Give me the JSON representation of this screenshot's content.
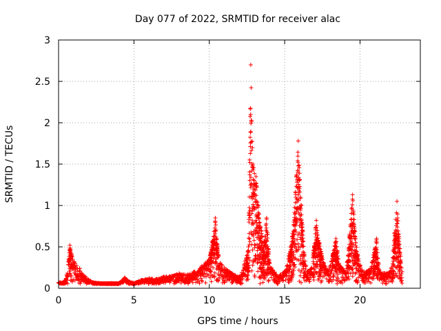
{
  "chart_data": {
    "type": "scatter",
    "title": "Day 077 of 2022, SRMTID for receiver alac",
    "xlabel": "GPS time / hours",
    "ylabel": "SRMTID / TECUs",
    "xlim": [
      0,
      24
    ],
    "ylim": [
      0,
      3
    ],
    "grid": true,
    "x_ticks": [
      0,
      5,
      10,
      15,
      20
    ],
    "y_ticks": [
      0,
      0.5,
      1,
      1.5,
      2,
      2.5,
      3
    ],
    "x_tick_labels": [
      "0",
      "5",
      "10",
      "15",
      "20"
    ],
    "y_tick_labels": [
      "0",
      "0.5",
      "1",
      "1.5",
      "2",
      "2.5",
      "3"
    ],
    "marker": "+",
    "series": [
      {
        "name": "SRMTID",
        "color": "#ff0000",
        "envelope": [
          [
            0.0,
            0.07
          ],
          [
            0.3,
            0.07
          ],
          [
            0.5,
            0.12
          ],
          [
            0.65,
            0.32
          ],
          [
            0.75,
            0.52
          ],
          [
            0.9,
            0.38
          ],
          [
            1.1,
            0.3
          ],
          [
            1.4,
            0.24
          ],
          [
            1.6,
            0.16
          ],
          [
            1.8,
            0.14
          ],
          [
            2.0,
            0.1
          ],
          [
            2.3,
            0.07
          ],
          [
            2.8,
            0.06
          ],
          [
            3.5,
            0.06
          ],
          [
            4.0,
            0.06
          ],
          [
            4.4,
            0.13
          ],
          [
            4.7,
            0.08
          ],
          [
            5.0,
            0.06
          ],
          [
            5.5,
            0.1
          ],
          [
            6.0,
            0.12
          ],
          [
            6.5,
            0.11
          ],
          [
            7.0,
            0.14
          ],
          [
            7.5,
            0.15
          ],
          [
            8.0,
            0.18
          ],
          [
            8.5,
            0.16
          ],
          [
            9.0,
            0.2
          ],
          [
            9.5,
            0.27
          ],
          [
            10.0,
            0.35
          ],
          [
            10.2,
            0.55
          ],
          [
            10.4,
            0.85
          ],
          [
            10.6,
            0.4
          ],
          [
            11.0,
            0.25
          ],
          [
            11.5,
            0.18
          ],
          [
            12.0,
            0.14
          ],
          [
            12.3,
            0.28
          ],
          [
            12.6,
            0.5
          ],
          [
            12.75,
            2.7
          ],
          [
            12.9,
            1.5
          ],
          [
            13.1,
            1.35
          ],
          [
            13.3,
            0.9
          ],
          [
            13.6,
            0.5
          ],
          [
            13.8,
            0.85
          ],
          [
            14.0,
            0.3
          ],
          [
            14.5,
            0.15
          ],
          [
            15.0,
            0.2
          ],
          [
            15.4,
            0.5
          ],
          [
            15.6,
            0.8
          ],
          [
            15.9,
            1.78
          ],
          [
            16.1,
            1.0
          ],
          [
            16.3,
            0.4
          ],
          [
            16.5,
            0.2
          ],
          [
            16.8,
            0.25
          ],
          [
            17.1,
            0.82
          ],
          [
            17.3,
            0.55
          ],
          [
            17.6,
            0.3
          ],
          [
            17.9,
            0.2
          ],
          [
            18.2,
            0.42
          ],
          [
            18.4,
            0.6
          ],
          [
            18.6,
            0.3
          ],
          [
            19.0,
            0.2
          ],
          [
            19.2,
            0.4
          ],
          [
            19.5,
            1.13
          ],
          [
            19.7,
            0.6
          ],
          [
            19.9,
            0.35
          ],
          [
            20.2,
            0.2
          ],
          [
            20.6,
            0.22
          ],
          [
            20.9,
            0.4
          ],
          [
            21.1,
            0.6
          ],
          [
            21.3,
            0.2
          ],
          [
            21.6,
            0.18
          ],
          [
            22.0,
            0.2
          ],
          [
            22.2,
            0.45
          ],
          [
            22.45,
            1.05
          ],
          [
            22.6,
            0.6
          ],
          [
            22.8,
            0.2
          ]
        ],
        "base_noise": 0.05
      }
    ]
  }
}
